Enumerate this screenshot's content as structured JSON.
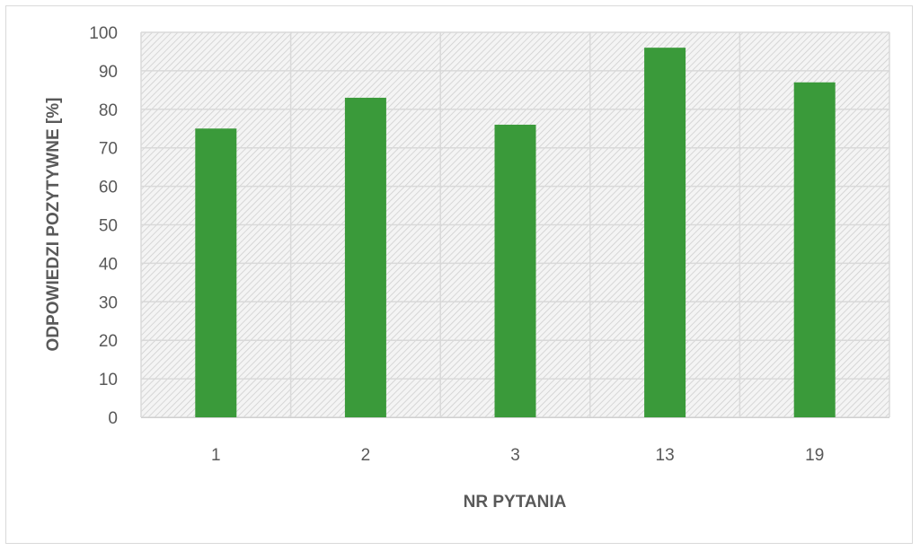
{
  "chart_data": {
    "type": "bar",
    "title": "",
    "xlabel": "NR PYTANIA",
    "ylabel": "ODPOWIEDZI POZYTYWNE [%]",
    "categories": [
      "1",
      "2",
      "3",
      "13",
      "19"
    ],
    "values": [
      75,
      83,
      76,
      96,
      87
    ],
    "ylim": [
      0,
      100
    ],
    "yticks": [
      "0",
      "10",
      "20",
      "30",
      "40",
      "50",
      "60",
      "70",
      "80",
      "90",
      "100"
    ],
    "grid": true,
    "legend": "none",
    "bar_color": "#3a9a3a",
    "background": "hatched-gray"
  }
}
